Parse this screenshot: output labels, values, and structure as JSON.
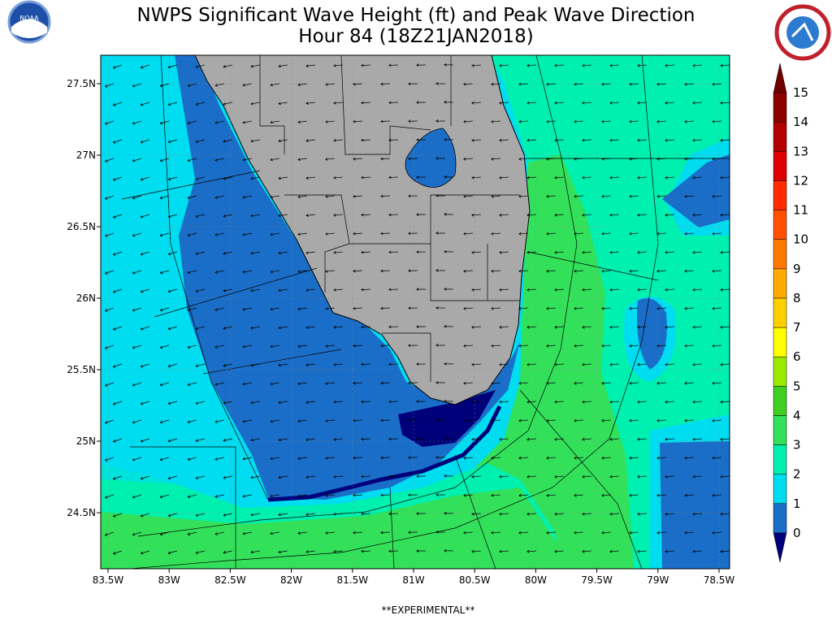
{
  "header": {
    "title_lines": [
      "NWPS Significant Wave Height (ft) and Peak Wave Direction",
      "Hour 84 (18Z21JAN2018)"
    ]
  },
  "map": {
    "lat_labels": [
      "27.5N",
      "27N",
      "26.5N",
      "26N",
      "25.5N",
      "25N",
      "24.5N"
    ],
    "lon_labels": [
      "83.5W",
      "83W",
      "82.5W",
      "82W",
      "81.5W",
      "81W",
      "80.5W",
      "80W",
      "79.5W",
      "79W",
      "78.5W"
    ]
  },
  "colorbar": {
    "labels": [
      0,
      1,
      2,
      3,
      4,
      5,
      6,
      7,
      8,
      9,
      10,
      11,
      12,
      13,
      14,
      15
    ],
    "colors": [
      "#00007a",
      "#1a6ec8",
      "#00dcf0",
      "#00f0b0",
      "#33e05a",
      "#40d020",
      "#9be800",
      "#ffff00",
      "#ffd000",
      "#ffaa00",
      "#ff7800",
      "#ff5000",
      "#ff2a00",
      "#e00000",
      "#b40000",
      "#8c0000",
      "#6e0000"
    ]
  },
  "footer": {
    "text": "**EXPERIMENTAL**"
  }
}
